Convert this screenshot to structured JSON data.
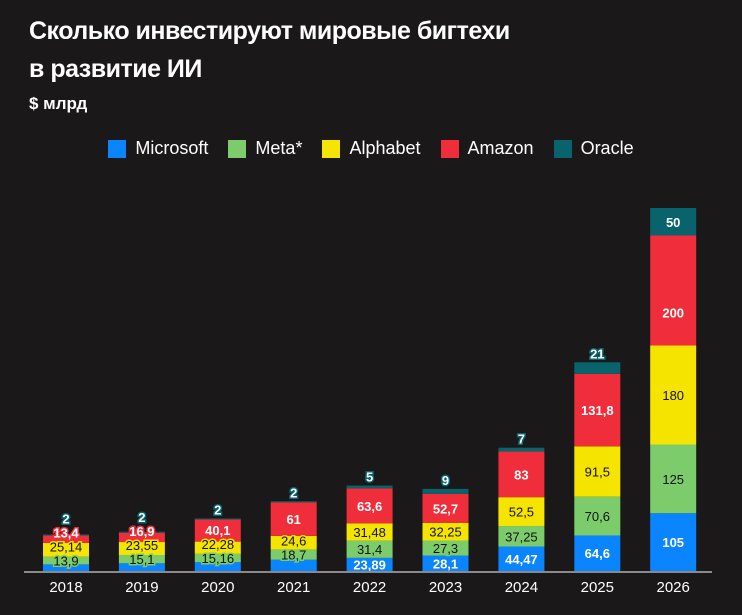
{
  "chart_data": {
    "type": "bar",
    "stacked": true,
    "title": "Сколько инвестируют мировые бигтехи в развитие ИИ",
    "title_lines": [
      "Сколько инвестируют мировые бигтехи",
      "в развитие ИИ"
    ],
    "subtitle": "$ млрд",
    "xlabel": "",
    "ylabel": "$ млрд",
    "ylim": [
      0,
      660
    ],
    "grid": false,
    "legend_position": "top-center",
    "categories": [
      "2018",
      "2019",
      "2020",
      "2021",
      "2022",
      "2023",
      "2024",
      "2025",
      "2026"
    ],
    "series": [
      {
        "name": "Microsoft",
        "color": "#0a84ff",
        "values": [
          12,
          14,
          16,
          20.5,
          23.89,
          28.1,
          44.47,
          64.6,
          105
        ],
        "labels": [
          "",
          "",
          "",
          "",
          "23,89",
          "28,1",
          "44,47",
          "64,6",
          "105"
        ],
        "label_color": "#ffffff"
      },
      {
        "name": "Meta*",
        "color": "#7ccc6c",
        "values": [
          13.9,
          15.1,
          15.16,
          18.7,
          31.4,
          27.3,
          37.25,
          70.6,
          125
        ],
        "labels": [
          "13,9",
          "15,1",
          "15,16",
          "18,7",
          "31,4",
          "27,3",
          "37,25",
          "70,6",
          "125"
        ],
        "label_color": "#111111"
      },
      {
        "name": "Alphabet",
        "color": "#f5e400",
        "values": [
          25.14,
          23.55,
          22.28,
          24.6,
          31.48,
          32.25,
          52.5,
          91.5,
          180
        ],
        "labels": [
          "25,14",
          "23,55",
          "22,28",
          "24,6",
          "31,48",
          "32,25",
          "52,5",
          "91,5",
          "180"
        ],
        "label_color": "#111111"
      },
      {
        "name": "Amazon",
        "color": "#f02d3a",
        "values": [
          13.4,
          16.9,
          40.1,
          61,
          63.6,
          52.7,
          83,
          131.8,
          200
        ],
        "labels": [
          "13,4",
          "16,9",
          "40,1",
          "61",
          "63,6",
          "52,7",
          "83",
          "131,8",
          "200"
        ],
        "label_color": "#ffffff"
      },
      {
        "name": "Oracle",
        "color": "#08636c",
        "values": [
          2,
          2,
          2,
          2,
          5,
          9,
          7,
          21,
          50
        ],
        "labels": [
          "2",
          "2",
          "2",
          "2",
          "5",
          "9",
          "7",
          "21",
          "50"
        ],
        "label_color": "#ffffff"
      }
    ]
  }
}
